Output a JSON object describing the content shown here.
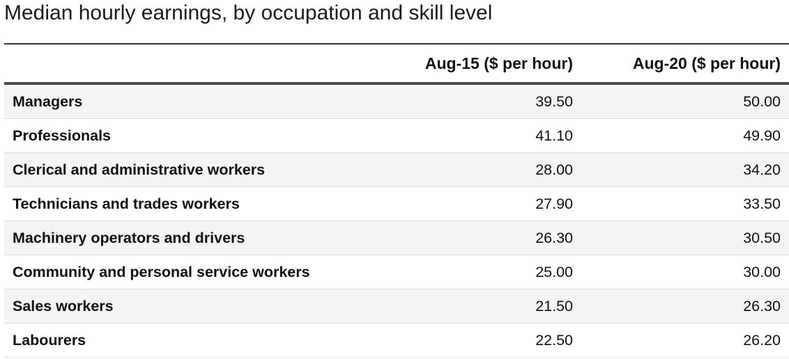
{
  "chart_data": {
    "type": "table",
    "title": "Median hourly earnings, by occupation and skill level",
    "columns": [
      "",
      "Aug-15 ($ per hour)",
      "Aug-20 ($ per hour)"
    ],
    "rows": [
      {
        "label": "Managers",
        "values": [
          "39.50",
          "50.00"
        ]
      },
      {
        "label": "Professionals",
        "values": [
          "41.10",
          "49.90"
        ]
      },
      {
        "label": "Clerical and administrative workers",
        "values": [
          "28.00",
          "34.20"
        ]
      },
      {
        "label": "Technicians and trades workers",
        "values": [
          "27.90",
          "33.50"
        ]
      },
      {
        "label": "Machinery operators and drivers",
        "values": [
          "26.30",
          "30.50"
        ]
      },
      {
        "label": "Community and personal service workers",
        "values": [
          "25.00",
          "30.00"
        ]
      },
      {
        "label": "Sales workers",
        "values": [
          "21.50",
          "26.30"
        ]
      },
      {
        "label": "Labourers",
        "values": [
          "22.50",
          "26.20"
        ]
      }
    ],
    "grid": "horizontal row dividers",
    "row_striping": true
  }
}
